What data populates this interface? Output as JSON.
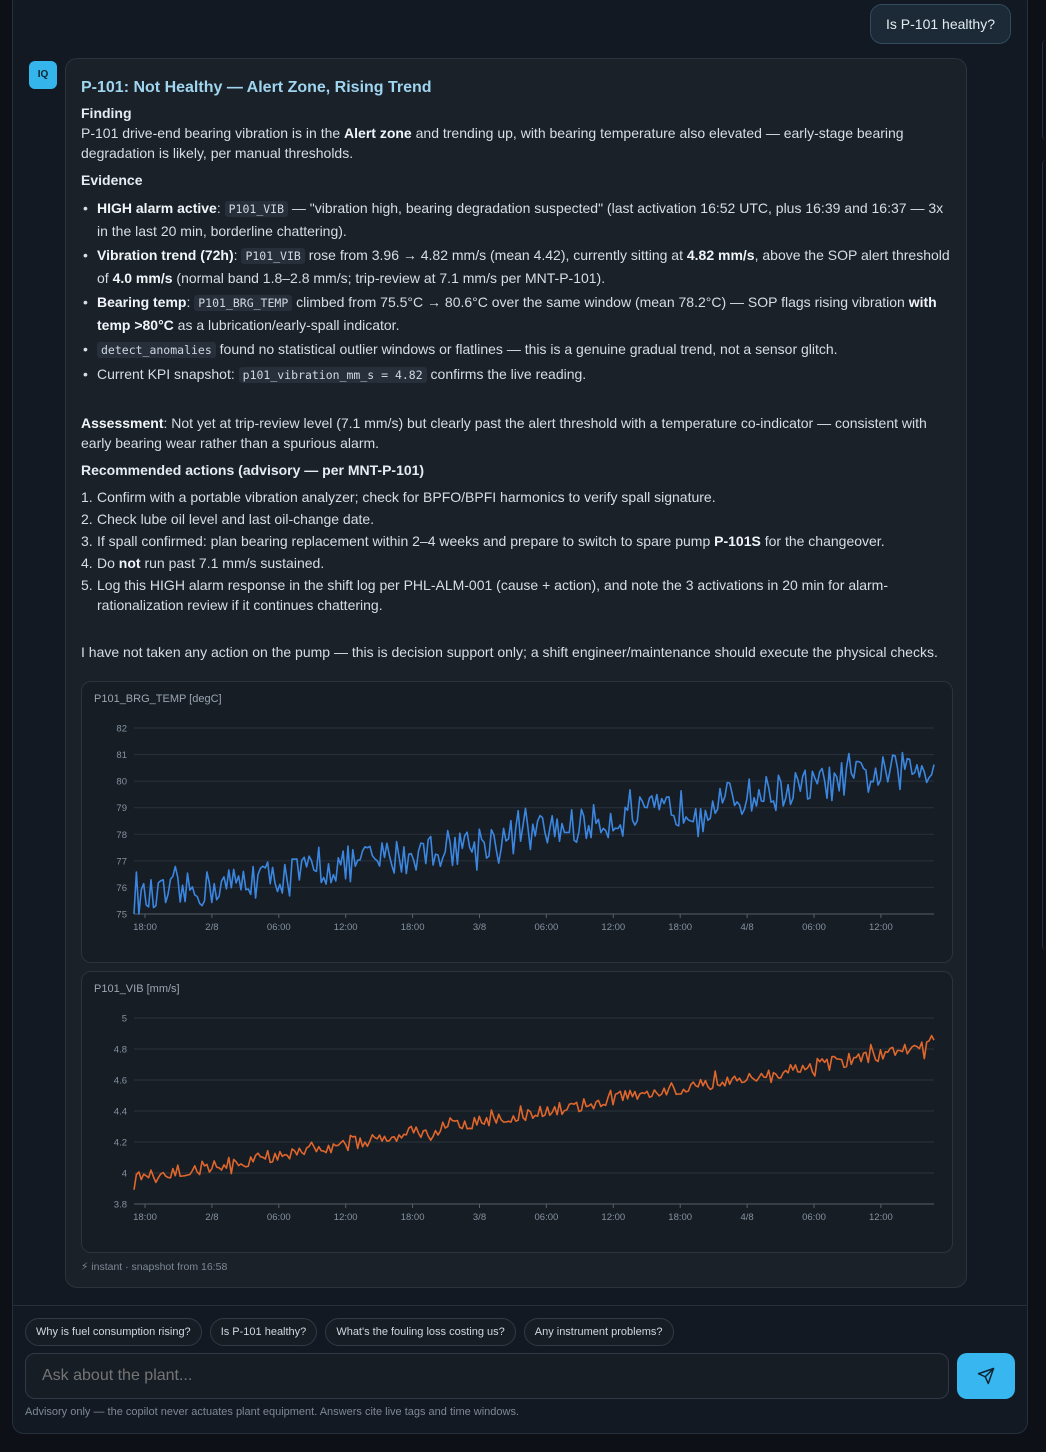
{
  "user_message": "Is P-101 healthy?",
  "assistant": {
    "avatar_label": "IQ",
    "title": "P-101: Not Healthy — Alert Zone, Rising Trend",
    "finding_head": "Finding",
    "finding_pre": "P-101 drive-end bearing vibration is in the ",
    "finding_bold": "Alert zone",
    "finding_post": " and trending up, with bearing temperature also elevated — early-stage bearing degradation is likely, per manual thresholds.",
    "evidence_head": "Evidence",
    "ev1": {
      "bold": "HIGH alarm active",
      "sep": ": ",
      "code": "P101_VIB",
      "text": " — \"vibration high, bearing degradation suspected\" (last activation 16:52 UTC, plus 16:39 and 16:37 — 3x in the last 20 min, borderline chattering)."
    },
    "ev2": {
      "bold": "Vibration trend (72h)",
      "sep": ": ",
      "code": "P101_VIB",
      "text1": " rose from 3.96 → 4.82 mm/s (mean 4.42), currently sitting at ",
      "bold2": "4.82 mm/s",
      "text2": ", above the SOP alert threshold of ",
      "bold3": "4.0 mm/s",
      "text3": " (normal band 1.8–2.8 mm/s; trip-review at 7.1 mm/s per MNT-P-101)."
    },
    "ev3": {
      "bold": "Bearing temp",
      "sep": ": ",
      "code": "P101_BRG_TEMP",
      "text1": " climbed from 75.5°C → 80.6°C over the same window (mean 78.2°C) — SOP flags rising vibration ",
      "bold2": "with temp >80°C",
      "text2": " as a lubrication/early-spall indicator."
    },
    "ev4": {
      "code": "detect_anomalies",
      "text": " found no statistical outlier windows or flatlines — this is a genuine gradual trend, not a sensor glitch."
    },
    "ev5": {
      "text1": "Current KPI snapshot: ",
      "code": "p101_vibration_mm_s = 4.82",
      "text2": " confirms the live reading."
    },
    "assessment_bold": "Assessment",
    "assessment_text": ": Not yet at trip-review level (7.1 mm/s) but clearly past the alert threshold with a temperature co-indicator — consistent with early bearing wear rather than a spurious alarm.",
    "actions_head": "Recommended actions (advisory — per MNT-P-101)",
    "act1": {
      "num": "1.",
      "text": "Confirm with a portable vibration analyzer; check for BPFO/BPFI harmonics to verify spall signature."
    },
    "act2": {
      "num": "2.",
      "text": "Check lube oil level and last oil-change date."
    },
    "act3": {
      "num": "3.",
      "text1": "If spall confirmed: plan bearing replacement within 2–4 weeks and prepare to switch to spare pump ",
      "bold": "P-101S",
      "text2": " for the changeover."
    },
    "act4": {
      "num": "4.",
      "text1": "Do ",
      "bold": "not",
      "text2": " run past 7.1 mm/s sustained."
    },
    "act5": {
      "num": "5.",
      "text": "Log this HIGH alarm response in the shift log per PHL-ALM-001 (cause + action), and note the 3 activations in 20 min for alarm-rationalization review if it continues chattering."
    },
    "closing": "I have not taken any action on the pump — this is decision support only; a shift engineer/maintenance should execute the physical checks.",
    "footnote": "⚡ instant · snapshot from 16:58"
  },
  "chart_data": [
    {
      "type": "line",
      "title": "P101_BRG_TEMP [degC]",
      "color": "#3b86e0",
      "x_ticks": [
        "18:00",
        "2/8",
        "06:00",
        "12:00",
        "18:00",
        "3/8",
        "06:00",
        "12:00",
        "18:00",
        "4/8",
        "06:00",
        "12:00"
      ],
      "y_ticks": [
        "75",
        "76",
        "77",
        "78",
        "79",
        "80",
        "81",
        "82"
      ],
      "ylim": [
        75,
        82
      ],
      "grid": true,
      "series": [
        {
          "start": 75.5,
          "end": 80.6,
          "mean": 78.2,
          "noise": 0.7
        }
      ]
    },
    {
      "type": "line",
      "title": "P101_VIB [mm/s]",
      "color": "#e0662b",
      "x_ticks": [
        "18:00",
        "2/8",
        "06:00",
        "12:00",
        "18:00",
        "3/8",
        "06:00",
        "12:00",
        "18:00",
        "4/8",
        "06:00",
        "12:00"
      ],
      "y_ticks": [
        "3.8",
        "4",
        "4.2",
        "4.4",
        "4.6",
        "4.8",
        "5"
      ],
      "ylim": [
        3.8,
        5.0
      ],
      "grid": true,
      "series": [
        {
          "start": 3.96,
          "end": 4.82,
          "mean": 4.42,
          "noise": 0.045
        }
      ]
    }
  ],
  "suggestions": [
    "Why is fuel consumption rising?",
    "Is P-101 healthy?",
    "What's the fouling loss costing us?",
    "Any instrument problems?"
  ],
  "input": {
    "placeholder": "Ask about the plant..."
  },
  "disclaimer": "Advisory only — the copilot never actuates plant equipment. Answers cite live tags and time windows."
}
